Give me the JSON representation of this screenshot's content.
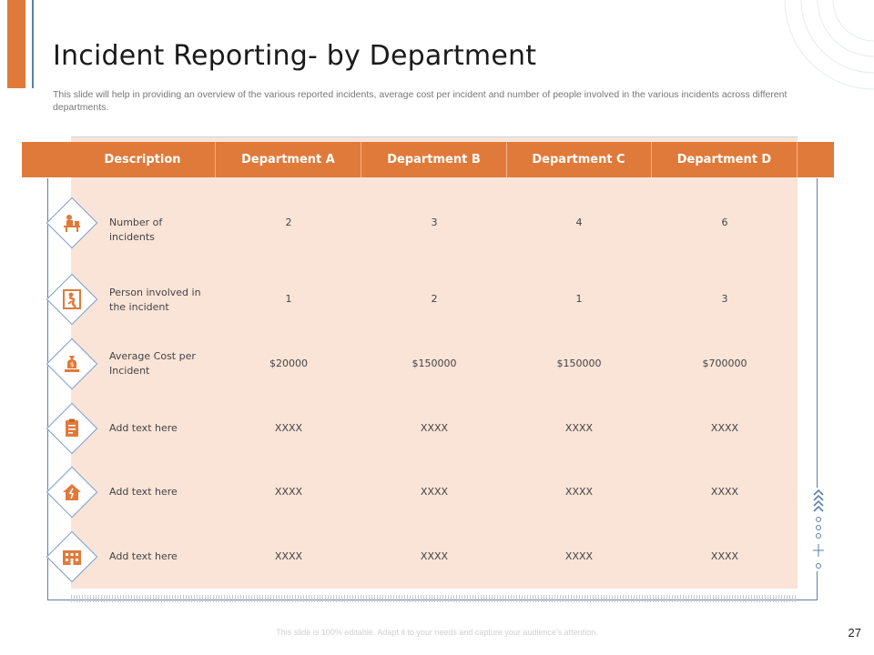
{
  "slide": {
    "title": "Incident Reporting- by Department",
    "subtitle": "This slide will help in providing an overview of the various reported incidents, average cost per incident and  number of people involved in the various incidents across different departments.",
    "footer": "This slide is 100% editable. Adapt it to your needs and capture your audience's attention.",
    "page_number": "27"
  },
  "colors": {
    "accent": "#e07a3a",
    "row_fill": "#fae3d7",
    "frame": "#5b7fae"
  },
  "table": {
    "headers": [
      "Description",
      "Department A",
      "Department B",
      "Department C",
      "Department D"
    ],
    "rows": [
      {
        "icon": "desk-worker-icon",
        "label": "Number of incidents",
        "values": [
          "2",
          "3",
          "4",
          "6"
        ]
      },
      {
        "icon": "person-falling-icon",
        "label": "Person involved in the incident",
        "values": [
          "1",
          "2",
          "1",
          "3"
        ]
      },
      {
        "icon": "money-bag-icon",
        "label": "Average Cost per Incident",
        "values": [
          "$20000",
          "$150000",
          "$150000",
          "$700000"
        ]
      },
      {
        "icon": "clipboard-document-icon",
        "label": "Add text here",
        "values": [
          "XXXX",
          "XXXX",
          "XXXX",
          "XXXX"
        ]
      },
      {
        "icon": "house-damage-icon",
        "label": "Add text here",
        "values": [
          "XXXX",
          "XXXX",
          "XXXX",
          "XXXX"
        ]
      },
      {
        "icon": "building-icon",
        "label": "Add text here",
        "values": [
          "XXXX",
          "XXXX",
          "XXXX",
          "XXXX"
        ]
      }
    ]
  }
}
